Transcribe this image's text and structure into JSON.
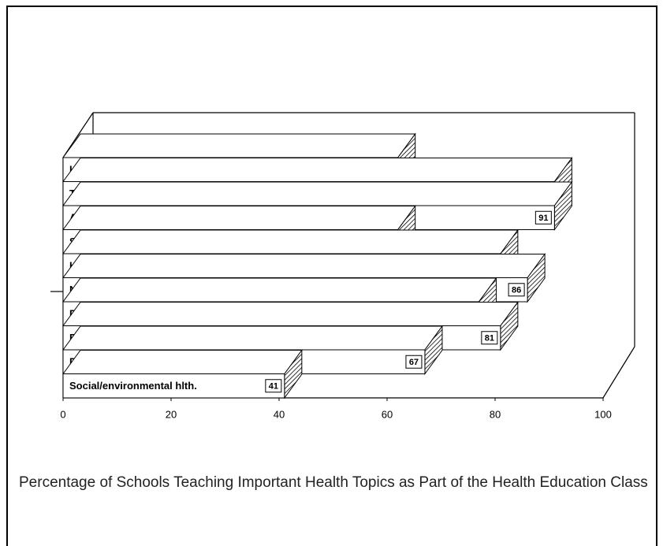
{
  "chart_data": {
    "type": "bar3d_horizontal",
    "title": "Percentage of Schools Teaching Important Health Topics as Part of the Health Education Class",
    "categories": [
      "Injury prevention",
      "Tobacco use prevention",
      "Alcohol & other drug use prevention",
      "Sexual behaviors",
      "HIV prevention",
      "Nutrition",
      "Physical fitness",
      "Emotional and mental health",
      "Personal hygiene",
      "Social/environmental hlth."
    ],
    "values": [
      62,
      91,
      91,
      62,
      81,
      86,
      77,
      81,
      67,
      41
    ],
    "color": "#ffffff",
    "xlim": [
      0,
      100
    ],
    "xticks": [
      0,
      20,
      40,
      60,
      80,
      100
    ]
  }
}
